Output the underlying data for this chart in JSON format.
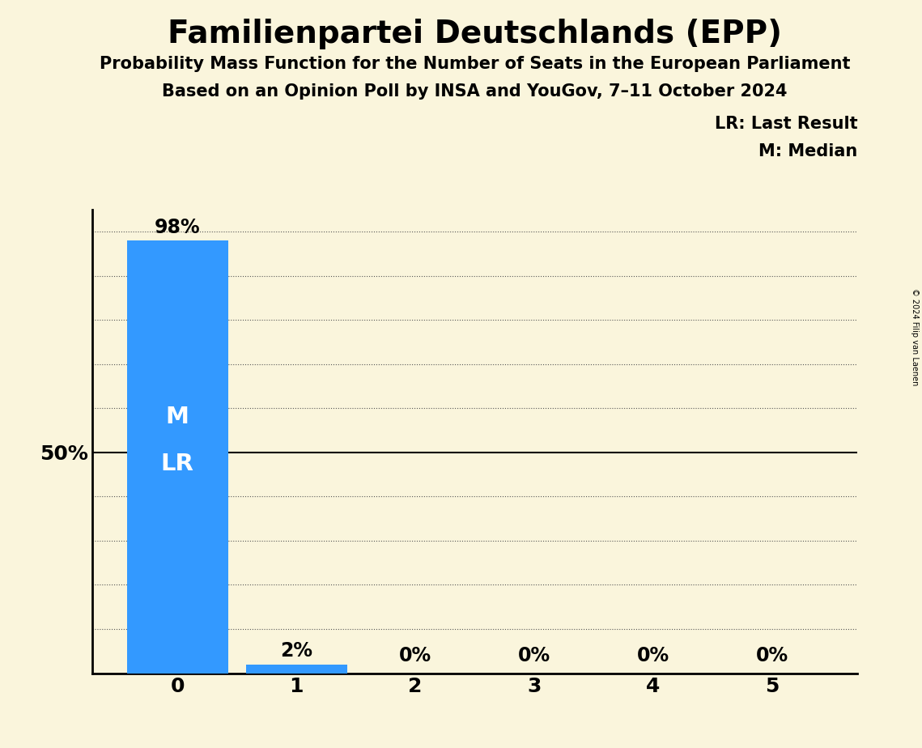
{
  "title": "Familienpartei Deutschlands (EPP)",
  "subtitle1": "Probability Mass Function for the Number of Seats in the European Parliament",
  "subtitle2": "Based on an Opinion Poll by INSA and YouGov, 7–11 October 2024",
  "copyright": "© 2024 Filip van Laenen",
  "categories": [
    0,
    1,
    2,
    3,
    4,
    5
  ],
  "values": [
    0.98,
    0.02,
    0.0,
    0.0,
    0.0,
    0.0
  ],
  "bar_labels": [
    "98%",
    "2%",
    "0%",
    "0%",
    "0%",
    "0%"
  ],
  "bar_color": "#3399ff",
  "background_color": "#faf5dc",
  "median_seat": 0,
  "last_result_seat": 0,
  "ylim_max": 1.05,
  "yticks": [
    0.0,
    0.1,
    0.2,
    0.3,
    0.4,
    0.5,
    0.6,
    0.7,
    0.8,
    0.9,
    1.0
  ],
  "legend_lr": "LR: Last Result",
  "legend_m": "M: Median",
  "median_label": "M",
  "lr_label": "LR",
  "title_fontsize": 28,
  "subtitle_fontsize": 15,
  "tick_fontsize": 18,
  "bar_label_fontsize": 17,
  "legend_fontsize": 15,
  "ml_fontsize": 21
}
